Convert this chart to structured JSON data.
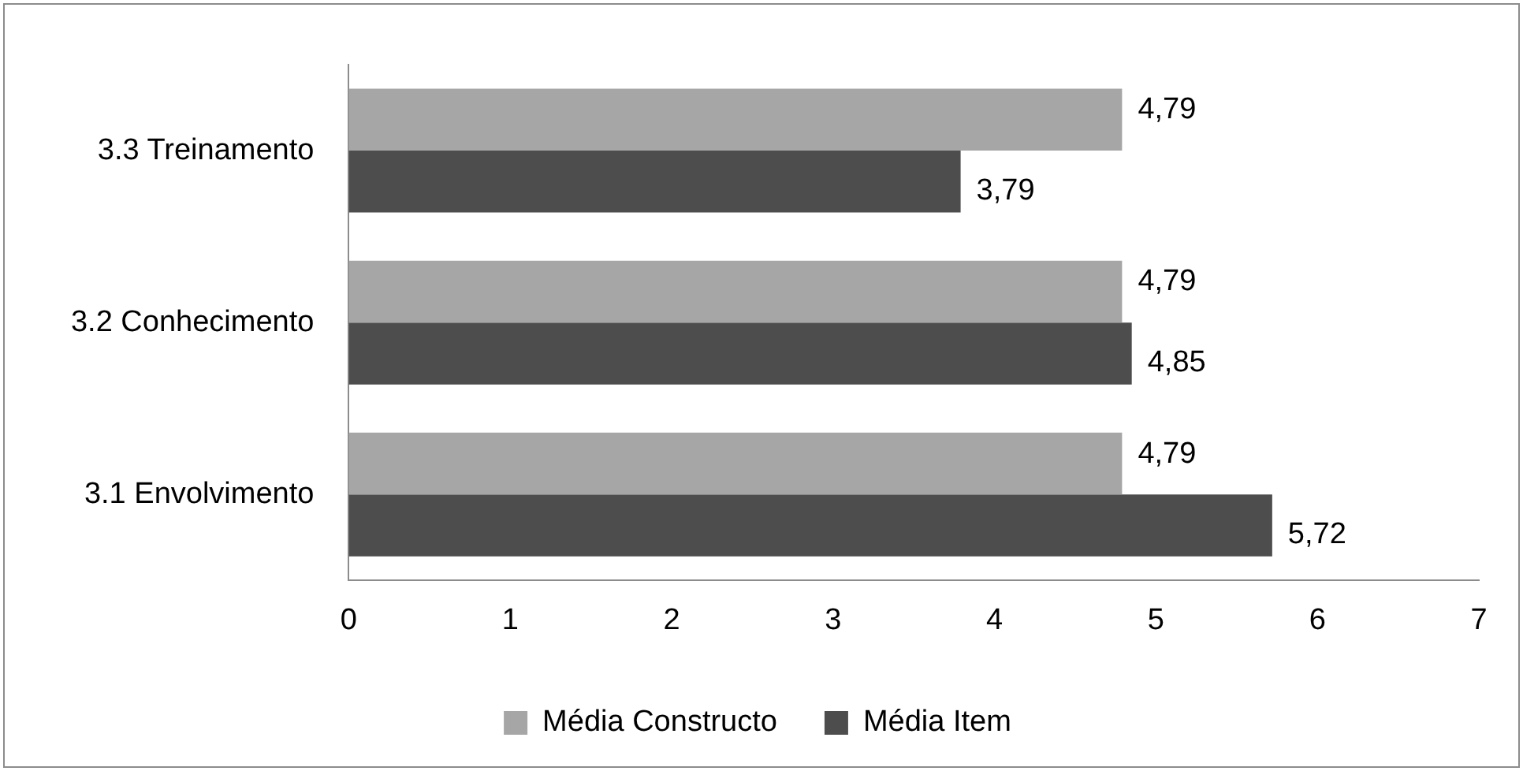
{
  "chart_data": {
    "type": "bar",
    "orientation": "horizontal",
    "categories": [
      "3.3 Treinamento",
      "3.2 Conhecimento",
      "3.1 Envolvimento"
    ],
    "series": [
      {
        "name": "Média Constructo",
        "color": "#a6a6a6",
        "values": [
          4.79,
          4.79,
          4.79
        ],
        "value_labels": [
          "4,79",
          "4,79",
          "4,79"
        ]
      },
      {
        "name": "Média Item",
        "color": "#4d4d4d",
        "values": [
          3.79,
          4.85,
          5.72
        ],
        "value_labels": [
          "3,79",
          "4,85",
          "5,72"
        ]
      }
    ],
    "xlim": [
      0,
      7
    ],
    "xticks": [
      0,
      1,
      2,
      3,
      4,
      5,
      6,
      7
    ],
    "grid": false,
    "legend": "bottom"
  }
}
